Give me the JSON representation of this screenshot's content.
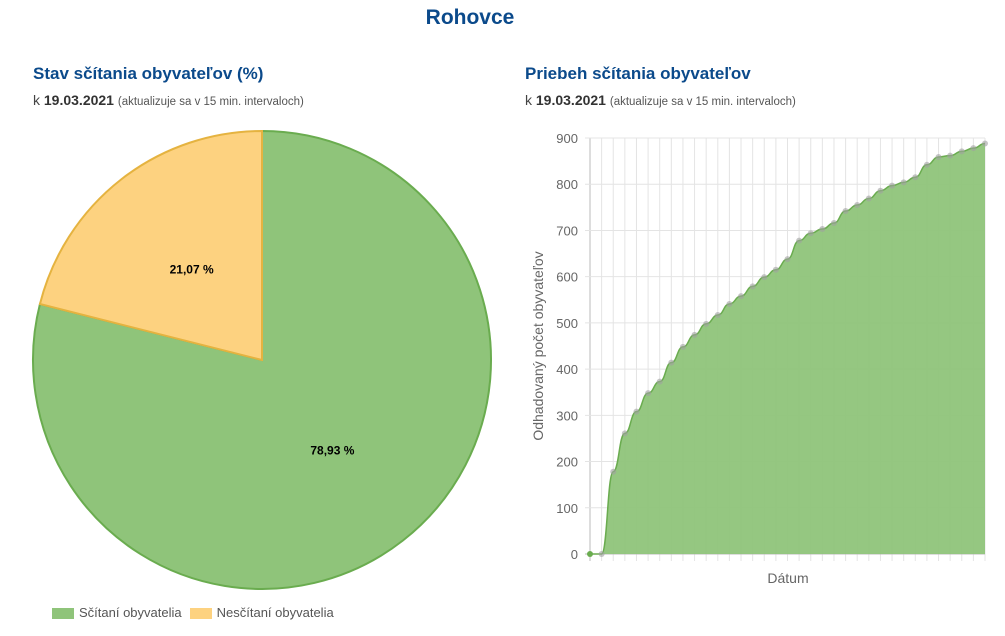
{
  "page_title": "Rohovce",
  "left": {
    "title": "Stav sčítania obyvateľov (%)",
    "prefix": "k",
    "date": "19.03.2021",
    "note": "(aktualizuje sa v 15 min. intervaloch)"
  },
  "right": {
    "title": "Priebeh sčítania obyvateľov",
    "prefix": "k",
    "date": "19.03.2021",
    "note": "(aktualizuje sa v 15 min. intervaloch)"
  },
  "colors": {
    "green": "#8fc47a",
    "green_line": "#6aac4f",
    "yellow": "#fdd280",
    "yellow_line": "#e5b340",
    "title": "#0b4a8b"
  },
  "chart_data": [
    {
      "type": "pie",
      "slices": [
        {
          "label": "Sčítaní obyvatelia",
          "value": 78.93,
          "display": "78,93 %",
          "color": "#8fc47a"
        },
        {
          "label": "Nesčítaní obyvatelia",
          "value": 21.07,
          "display": "21,07 %",
          "color": "#fdd280"
        }
      ],
      "legend": [
        "Sčítaní obyvatelia",
        "Nesčítaní obyvatelia"
      ],
      "legend_position": "bottom-left"
    },
    {
      "type": "area",
      "xlabel": "Dátum",
      "ylabel": "Odhadovaný počet obyvateľov",
      "ylim": [
        0,
        900
      ],
      "yticks": [
        0,
        100,
        200,
        300,
        400,
        500,
        600,
        700,
        800,
        900
      ],
      "grid": true,
      "values": [
        0,
        0,
        178,
        261,
        308,
        348,
        373,
        414,
        448,
        474,
        498,
        517,
        541,
        558,
        579,
        599,
        615,
        638,
        678,
        694,
        703,
        716,
        742,
        755,
        769,
        786,
        797,
        804,
        815,
        842,
        859,
        862,
        871,
        878,
        888
      ]
    }
  ]
}
